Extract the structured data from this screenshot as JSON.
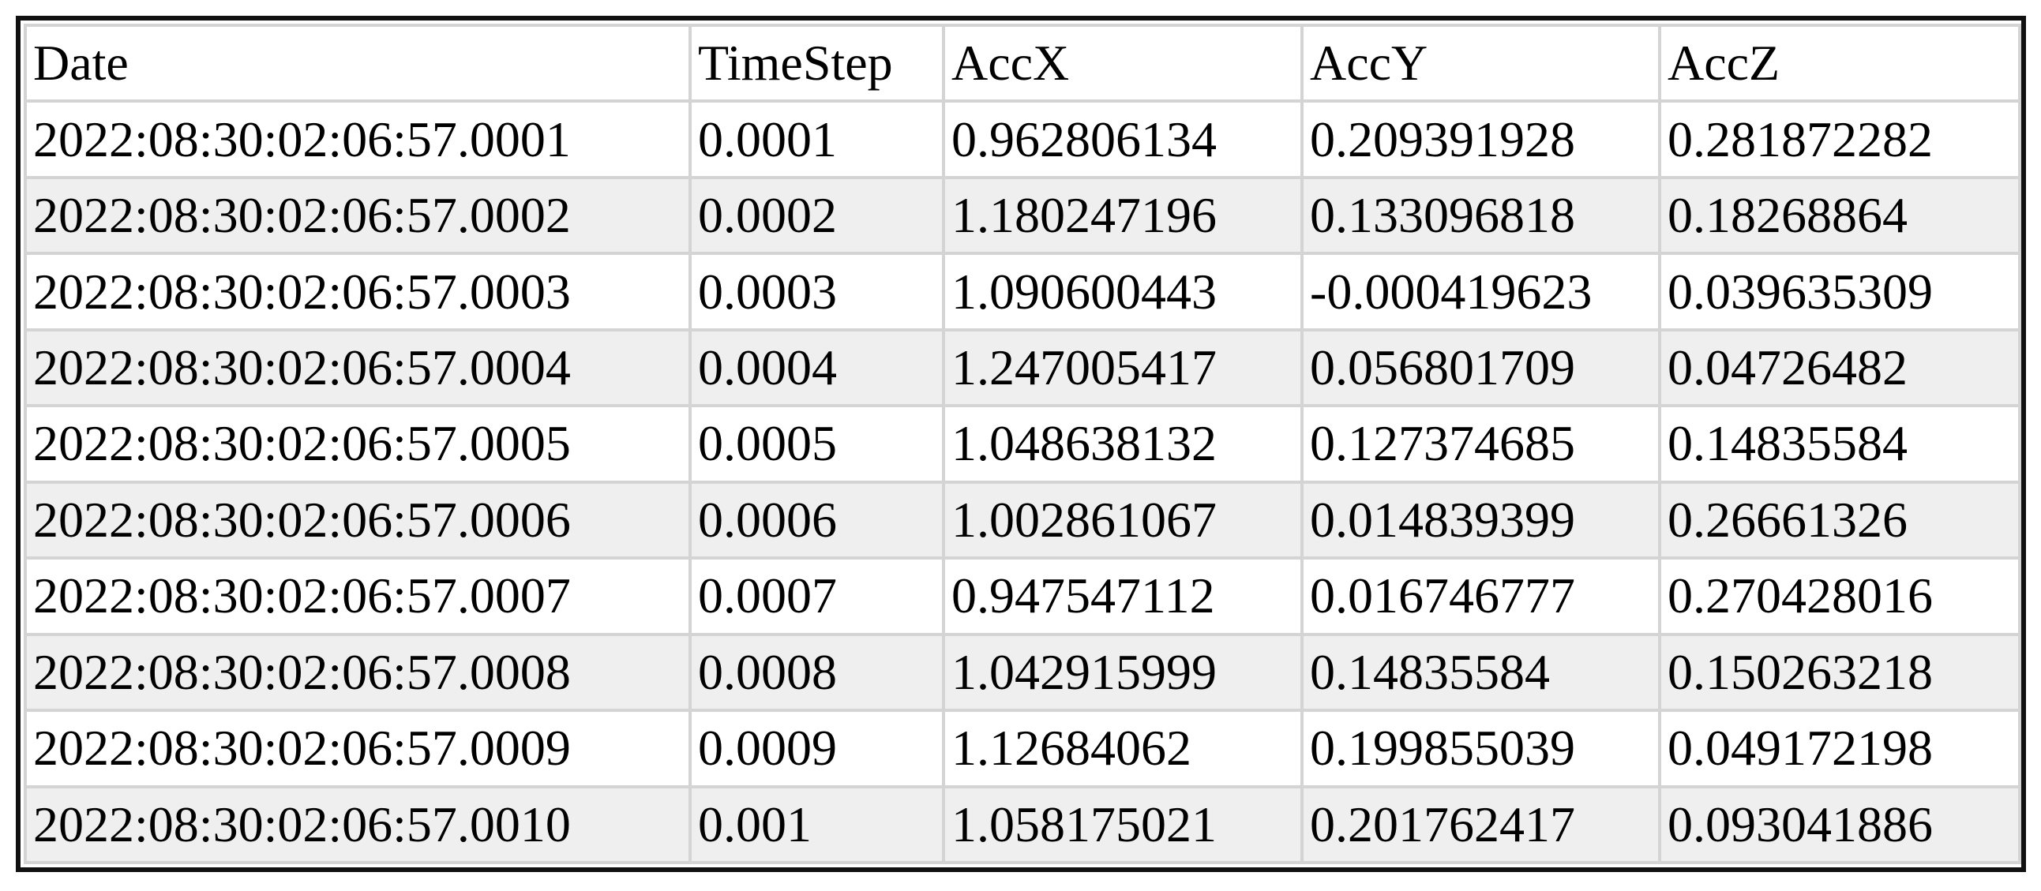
{
  "table": {
    "header": [
      "Date",
      "TimeStep",
      "AccX",
      "AccY",
      "AccZ"
    ],
    "rows": [
      [
        "2022:08:30:02:06:57.0001",
        "0.0001",
        "0.962806134",
        "0.209391928",
        "0.281872282"
      ],
      [
        "2022:08:30:02:06:57.0002",
        "0.0002",
        "1.180247196",
        "0.133096818",
        "0.18268864"
      ],
      [
        "2022:08:30:02:06:57.0003",
        "0.0003",
        "1.090600443",
        "-0.000419623",
        "0.039635309"
      ],
      [
        "2022:08:30:02:06:57.0004",
        "0.0004",
        "1.247005417",
        "0.056801709",
        "0.04726482"
      ],
      [
        "2022:08:30:02:06:57.0005",
        "0.0005",
        "1.048638132",
        "0.127374685",
        "0.14835584"
      ],
      [
        "2022:08:30:02:06:57.0006",
        "0.0006",
        "1.002861067",
        "0.014839399",
        "0.26661326"
      ],
      [
        "2022:08:30:02:06:57.0007",
        "0.0007",
        "0.947547112",
        "0.016746777",
        "0.270428016"
      ],
      [
        "2022:08:30:02:06:57.0008",
        "0.0008",
        "1.042915999",
        "0.14835584",
        "0.150263218"
      ],
      [
        "2022:08:30:02:06:57.0009",
        "0.0009",
        "1.12684062",
        "0.199855039",
        "0.049172198"
      ],
      [
        "2022:08:30:02:06:57.0010",
        "0.001",
        "1.058175021",
        "0.201762417",
        "0.093041886"
      ]
    ]
  }
}
